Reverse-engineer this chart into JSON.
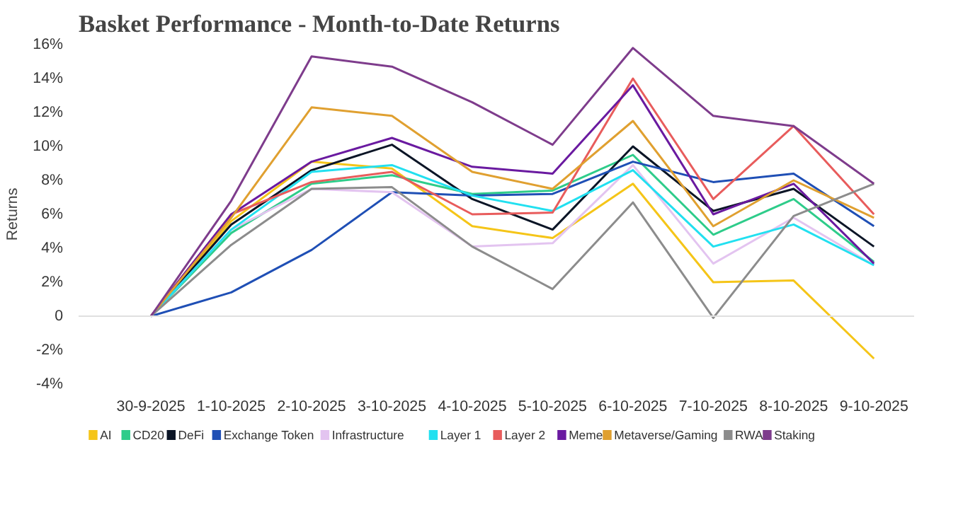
{
  "chart_data": {
    "type": "line",
    "title": "Basket Performance - Month-to-Date Returns",
    "ylabel": "Returns",
    "categories": [
      "30-9-2025",
      "1-10-2025",
      "2-10-2025",
      "3-10-2025",
      "4-10-2025",
      "5-10-2025",
      "6-10-2025",
      "7-10-2025",
      "8-10-2025",
      "9-10-2025"
    ],
    "series": [
      {
        "name": "AI",
        "color": "#f5c518",
        "values": [
          0,
          5.6,
          9.1,
          8.7,
          5.3,
          4.6,
          7.8,
          2.0,
          2.1,
          -2.5
        ]
      },
      {
        "name": "CD20",
        "color": "#2ecc8a",
        "values": [
          0,
          4.9,
          7.8,
          8.3,
          7.2,
          7.4,
          9.5,
          4.8,
          6.9,
          3.2
        ]
      },
      {
        "name": "DeFi",
        "color": "#0b1526",
        "values": [
          0,
          5.4,
          8.6,
          10.1,
          6.9,
          5.1,
          10.0,
          6.2,
          7.5,
          4.1
        ]
      },
      {
        "name": "Exchange Token",
        "color": "#1f4fb5",
        "values": [
          0,
          1.4,
          3.9,
          7.3,
          7.1,
          7.2,
          9.1,
          7.9,
          8.4,
          5.3
        ]
      },
      {
        "name": "Infrastructure",
        "color": "#e3c4f0",
        "values": [
          0,
          5.1,
          7.5,
          7.3,
          4.1,
          4.3,
          8.9,
          3.1,
          5.8,
          3.0
        ]
      },
      {
        "name": "Layer 1",
        "color": "#22e0f0",
        "values": [
          0,
          5.1,
          8.5,
          8.9,
          7.1,
          6.2,
          8.6,
          4.1,
          5.4,
          3.0
        ]
      },
      {
        "name": "Layer 2",
        "color": "#e85c5c",
        "values": [
          0,
          6.0,
          7.9,
          8.5,
          6.0,
          6.1,
          14.0,
          6.9,
          11.2,
          6.0
        ]
      },
      {
        "name": "Meme",
        "color": "#6a1aa0",
        "values": [
          0,
          6.0,
          9.1,
          10.5,
          8.8,
          8.4,
          13.6,
          6.0,
          7.8,
          3.1
        ]
      },
      {
        "name": "Metaverse/Gaming",
        "color": "#e0a030",
        "values": [
          0,
          5.8,
          12.3,
          11.8,
          8.5,
          7.5,
          11.5,
          5.3,
          8.0,
          5.8
        ]
      },
      {
        "name": "RWA",
        "color": "#8c8c8c",
        "values": [
          0,
          4.2,
          7.5,
          7.6,
          4.1,
          1.6,
          6.7,
          -0.1,
          5.9,
          7.8
        ]
      },
      {
        "name": "Staking",
        "color": "#7e3c8c",
        "values": [
          0,
          6.8,
          15.3,
          14.7,
          12.6,
          10.1,
          15.8,
          11.8,
          11.2,
          7.8
        ]
      }
    ],
    "ylim": [
      -4,
      16
    ],
    "yticks": [
      {
        "value": -4,
        "label": "-4%"
      },
      {
        "value": -2,
        "label": "-2%"
      },
      0,
      {
        "value": 2,
        "label": "2%"
      },
      {
        "value": 4,
        "label": "4%"
      },
      {
        "value": 6,
        "label": "6%"
      },
      {
        "value": 8,
        "label": "8%"
      },
      {
        "value": 10,
        "label": "10%"
      },
      {
        "value": 12,
        "label": "12%"
      },
      {
        "value": 14,
        "label": "14%"
      },
      {
        "value": 16,
        "label": "16%"
      }
    ],
    "ref_lines": [
      {
        "axis": "y",
        "value": 0,
        "color": "#e0e0e0"
      }
    ],
    "grid": false,
    "legend": "bottom",
    "marker": "none",
    "line_style": "solid"
  }
}
